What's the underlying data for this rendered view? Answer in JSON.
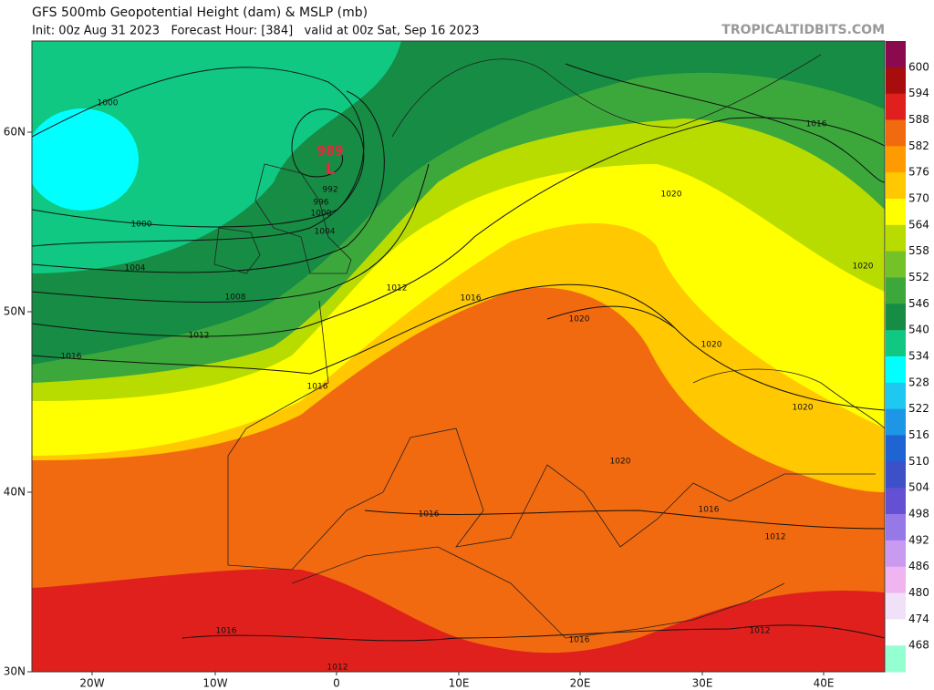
{
  "header": {
    "title": "GFS 500mb Geopotential Height (dam) & MSLP (mb)",
    "subtitle": "Init: 00z Aug 31 2023   Forecast Hour: [384]   valid at 00z Sat, Sep 16 2023",
    "brand": "TROPICALTIDBITS.COM"
  },
  "axes": {
    "lat_labels": [
      "60N",
      "50N",
      "40N",
      "30N"
    ],
    "lon_labels": [
      "20W",
      "10W",
      "0",
      "10E",
      "20E",
      "30E",
      "40E"
    ]
  },
  "low": {
    "pressure": "989",
    "symbol": "L"
  },
  "contour_labels": [
    "1000",
    "1000",
    "1004",
    "1008",
    "1012",
    "1016",
    "1016",
    "1012",
    "1016",
    "992",
    "996",
    "1000",
    "1004",
    "1020",
    "1016",
    "1020",
    "1020",
    "1020",
    "1020",
    "1020",
    "1016",
    "1016",
    "1012",
    "1016",
    "1016",
    "1012",
    "1012"
  ],
  "colorbar": {
    "labels": [
      600,
      594,
      588,
      582,
      576,
      570,
      564,
      558,
      552,
      546,
      540,
      534,
      528,
      522,
      516,
      510,
      504,
      498,
      492,
      486,
      480,
      474,
      468
    ],
    "colors": [
      "#8b0a4f",
      "#a80d0d",
      "#e0201c",
      "#f26a10",
      "#ff9a00",
      "#ffc800",
      "#ffff00",
      "#b8dc00",
      "#74c228",
      "#3ca83c",
      "#168c44",
      "#10c882",
      "#00ffff",
      "#1ec8f0",
      "#1e96e6",
      "#1e64d2",
      "#3c50c8",
      "#6450d2",
      "#9678e6",
      "#c89af0",
      "#f0b4f0",
      "#f0e0f8",
      "#ffffff",
      "#96ffd2"
    ]
  }
}
